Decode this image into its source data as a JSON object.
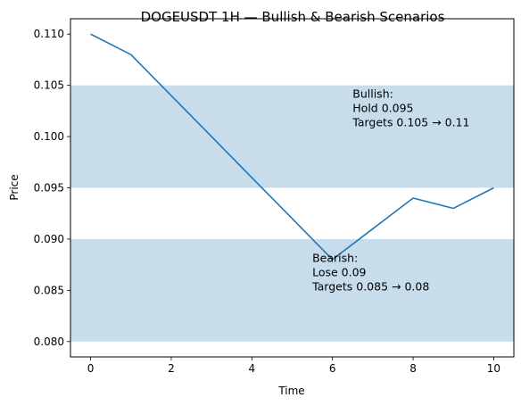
{
  "chart_data": {
    "type": "line",
    "title": "DOGEUSDT 1H — Bullish & Bearish Scenarios",
    "xlabel": "Time",
    "ylabel": "Price",
    "xlim": [
      -0.5,
      10.5
    ],
    "ylim": [
      0.0785,
      0.1115
    ],
    "x_ticks": [
      0,
      2,
      4,
      6,
      8,
      10
    ],
    "x_tick_labels": [
      "0",
      "2",
      "4",
      "6",
      "8",
      "10"
    ],
    "y_ticks": [
      0.08,
      0.085,
      0.09,
      0.095,
      0.1,
      0.105,
      0.11
    ],
    "y_tick_labels": [
      "0.080",
      "0.085",
      "0.090",
      "0.095",
      "0.100",
      "0.105",
      "0.110"
    ],
    "grid": false,
    "series": [
      {
        "x": [
          0,
          1,
          2,
          3,
          4,
          5,
          6,
          7,
          8,
          9,
          10
        ],
        "values": [
          0.11,
          0.108,
          0.104,
          0.1,
          0.096,
          0.092,
          0.088,
          0.091,
          0.094,
          0.093,
          0.095
        ],
        "color": "#1f77b4"
      }
    ],
    "bands": [
      {
        "ymin": 0.095,
        "ymax": 0.105,
        "color": "#1f77b4",
        "alpha": 0.25
      },
      {
        "ymin": 0.08,
        "ymax": 0.09,
        "color": "#1f77b4",
        "alpha": 0.25
      }
    ],
    "annotations": [
      {
        "x": 6.5,
        "y": 0.101,
        "lines": [
          "Bullish:",
          "Hold 0.095",
          "Targets 0.105 → 0.11"
        ]
      },
      {
        "x": 5.5,
        "y": 0.085,
        "lines": [
          "Bearish:",
          "Lose 0.09",
          "Targets 0.085 → 0.08"
        ]
      }
    ]
  }
}
